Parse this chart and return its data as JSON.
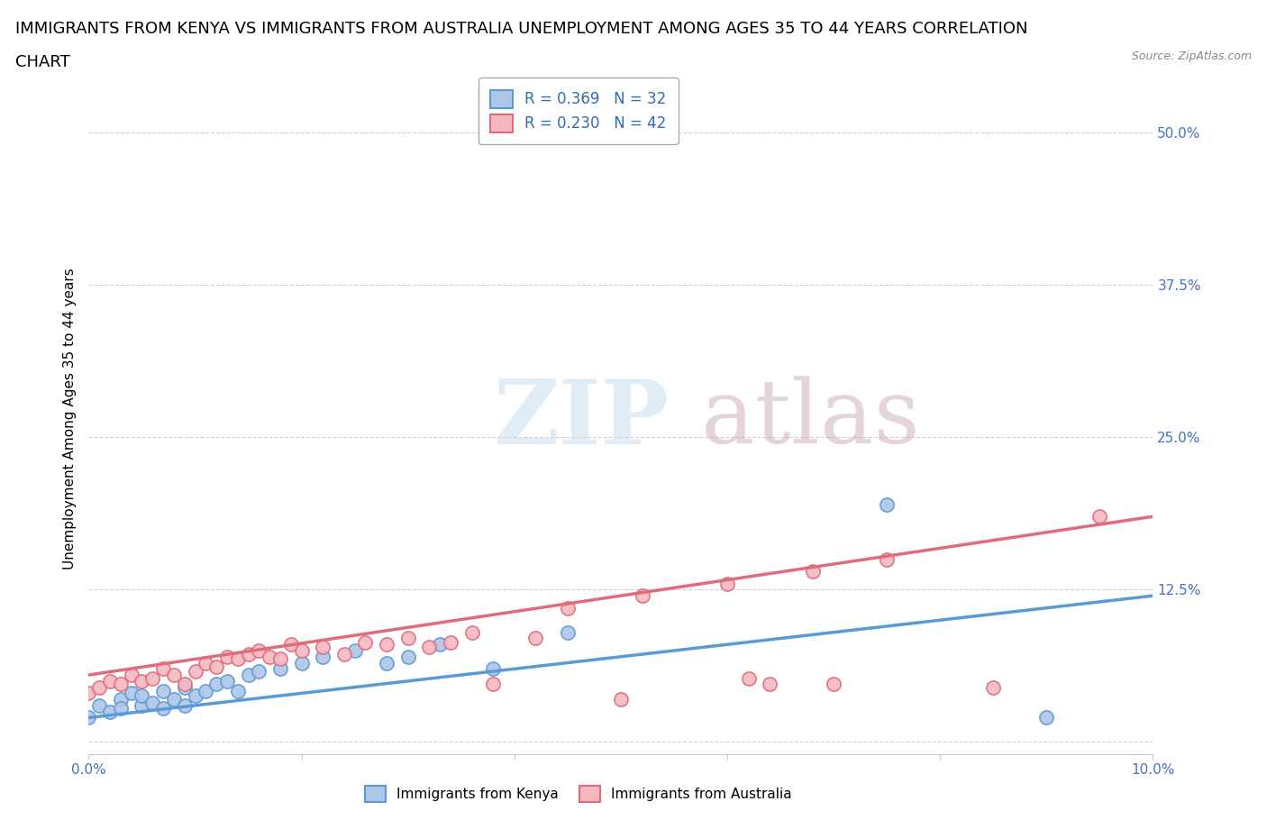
{
  "title_line1": "IMMIGRANTS FROM KENYA VS IMMIGRANTS FROM AUSTRALIA UNEMPLOYMENT AMONG AGES 35 TO 44 YEARS CORRELATION",
  "title_line2": "CHART",
  "source_text": "Source: ZipAtlas.com",
  "ylabel": "Unemployment Among Ages 35 to 44 years",
  "xlim": [
    0.0,
    0.1
  ],
  "ylim": [
    -0.01,
    0.54
  ],
  "x_ticks": [
    0.0,
    0.02,
    0.04,
    0.06,
    0.08,
    0.1
  ],
  "y_ticks": [
    0.0,
    0.125,
    0.25,
    0.375,
    0.5
  ],
  "kenya_scatter_x": [
    0.0,
    0.001,
    0.002,
    0.003,
    0.003,
    0.004,
    0.005,
    0.005,
    0.006,
    0.007,
    0.007,
    0.008,
    0.009,
    0.009,
    0.01,
    0.011,
    0.012,
    0.013,
    0.014,
    0.015,
    0.016,
    0.018,
    0.02,
    0.022,
    0.025,
    0.028,
    0.03,
    0.033,
    0.038,
    0.045,
    0.075,
    0.09
  ],
  "kenya_scatter_y": [
    0.02,
    0.03,
    0.025,
    0.035,
    0.028,
    0.04,
    0.03,
    0.038,
    0.032,
    0.028,
    0.042,
    0.035,
    0.03,
    0.045,
    0.038,
    0.042,
    0.048,
    0.05,
    0.042,
    0.055,
    0.058,
    0.06,
    0.065,
    0.07,
    0.075,
    0.065,
    0.07,
    0.08,
    0.06,
    0.09,
    0.195,
    0.02
  ],
  "australia_scatter_x": [
    0.0,
    0.001,
    0.002,
    0.003,
    0.004,
    0.005,
    0.006,
    0.007,
    0.008,
    0.009,
    0.01,
    0.011,
    0.012,
    0.013,
    0.014,
    0.015,
    0.016,
    0.017,
    0.018,
    0.019,
    0.02,
    0.022,
    0.024,
    0.026,
    0.028,
    0.03,
    0.032,
    0.034,
    0.036,
    0.038,
    0.042,
    0.045,
    0.05,
    0.052,
    0.06,
    0.062,
    0.064,
    0.068,
    0.07,
    0.075,
    0.085,
    0.095
  ],
  "australia_scatter_y": [
    0.04,
    0.045,
    0.05,
    0.048,
    0.055,
    0.05,
    0.052,
    0.06,
    0.055,
    0.048,
    0.058,
    0.065,
    0.062,
    0.07,
    0.068,
    0.072,
    0.075,
    0.07,
    0.068,
    0.08,
    0.075,
    0.078,
    0.072,
    0.082,
    0.08,
    0.085,
    0.078,
    0.082,
    0.09,
    0.048,
    0.085,
    0.11,
    0.035,
    0.12,
    0.13,
    0.052,
    0.048,
    0.14,
    0.048,
    0.15,
    0.045,
    0.185
  ],
  "kenya_color_face": "#aec6e8",
  "kenya_color_edge": "#5b9bd5",
  "australia_color_face": "#f4b8c1",
  "australia_color_edge": "#e06b7a",
  "kenya_trend_x": [
    0.0,
    0.1
  ],
  "kenya_trend_y": [
    0.02,
    0.12
  ],
  "australia_trend_x": [
    0.0,
    0.1
  ],
  "australia_trend_y": [
    0.055,
    0.185
  ],
  "watermark_zip": "ZIP",
  "watermark_atlas": "atlas",
  "background_color": "#ffffff",
  "grid_color": "#cccccc",
  "title_fontsize": 13,
  "axis_label_fontsize": 11,
  "tick_color": "#4472c4",
  "legend_top": [
    {
      "label": "R = 0.369   N = 32",
      "face": "#aec6e8",
      "edge": "#5b9bd5"
    },
    {
      "label": "R = 0.230   N = 42",
      "face": "#f4b8c1",
      "edge": "#e06b7a"
    }
  ],
  "legend_bottom": [
    {
      "label": "Immigrants from Kenya",
      "face": "#aec6e8",
      "edge": "#5b9bd5"
    },
    {
      "label": "Immigrants from Australia",
      "face": "#f4b8c1",
      "edge": "#e06b7a"
    }
  ]
}
